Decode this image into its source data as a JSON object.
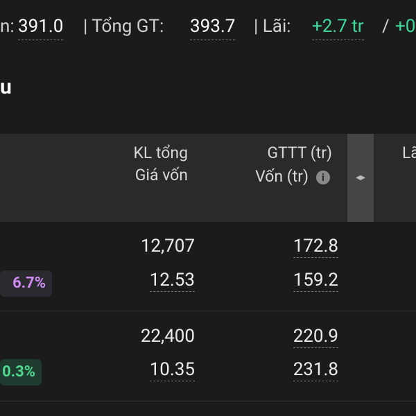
{
  "summary": {
    "items": [
      {
        "label": "n:",
        "value": "391.0"
      },
      {
        "label": "| Tổng GT:",
        "value": "393.7"
      },
      {
        "label": "| Lãi:",
        "value": "+2.7 tr"
      },
      {
        "label": "/",
        "value": "+0"
      }
    ]
  },
  "section": {
    "title": "u"
  },
  "table": {
    "header": {
      "col1": [
        "KL tổng",
        "Giá vốn"
      ],
      "col2": [
        "GTTT (tr)",
        "Vốn (tr)"
      ],
      "toggle": "◂▸",
      "col3": "Lã"
    },
    "rows": [
      {
        "change": "6.7%",
        "volume": "12,707",
        "cost_price": "12.53",
        "market_value": "172.8",
        "capital": "159.2"
      },
      {
        "change": "0.3%",
        "volume": "22,400",
        "cost_price": "10.35",
        "market_value": "220.9",
        "capital": "231.8"
      }
    ]
  }
}
